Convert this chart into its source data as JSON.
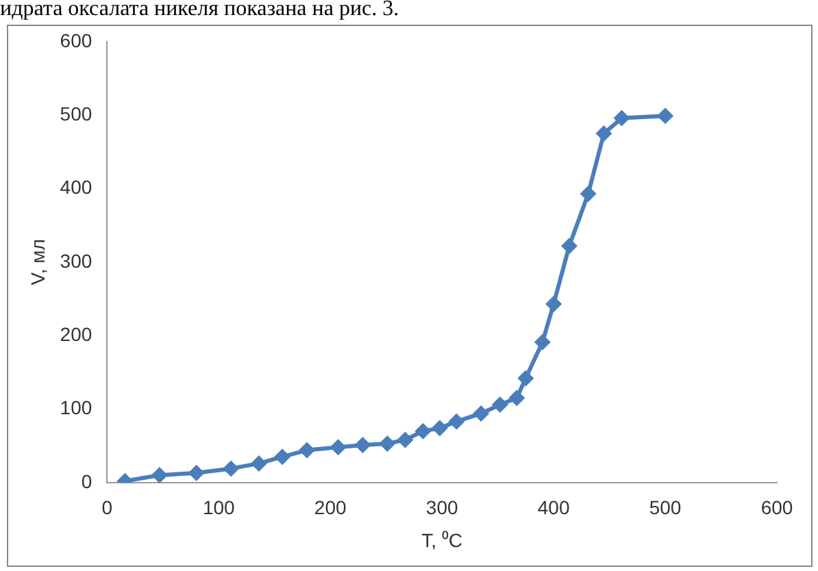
{
  "chart_data": {
    "type": "line",
    "xlabel": "T, ⁰C",
    "ylabel": "V, мл",
    "annotations": [
      "идрата оксалата никеля показана на рис. 3."
    ],
    "x": [
      16,
      47,
      80,
      111,
      136,
      157,
      179,
      207,
      229,
      251,
      267,
      283,
      298,
      313,
      335,
      352,
      367,
      375,
      390,
      400,
      414,
      431,
      445,
      461,
      500
    ],
    "series": [
      {
        "color": "#4a7ebb",
        "values": [
          2,
          10,
          13,
          19,
          26,
          35,
          44,
          48,
          51,
          53,
          58,
          70,
          74,
          83,
          94,
          106,
          115,
          142,
          191,
          243,
          322,
          393,
          475,
          496,
          499
        ]
      }
    ],
    "xlim": [
      0,
      600
    ],
    "xticks": [
      0,
      100,
      200,
      300,
      400,
      500,
      600
    ],
    "ylim": [
      0,
      600
    ],
    "yticks": [
      0,
      100,
      200,
      300,
      400,
      500,
      600
    ],
    "grid": false,
    "legend": false,
    "marker": "diamond",
    "line_style": "solid"
  }
}
